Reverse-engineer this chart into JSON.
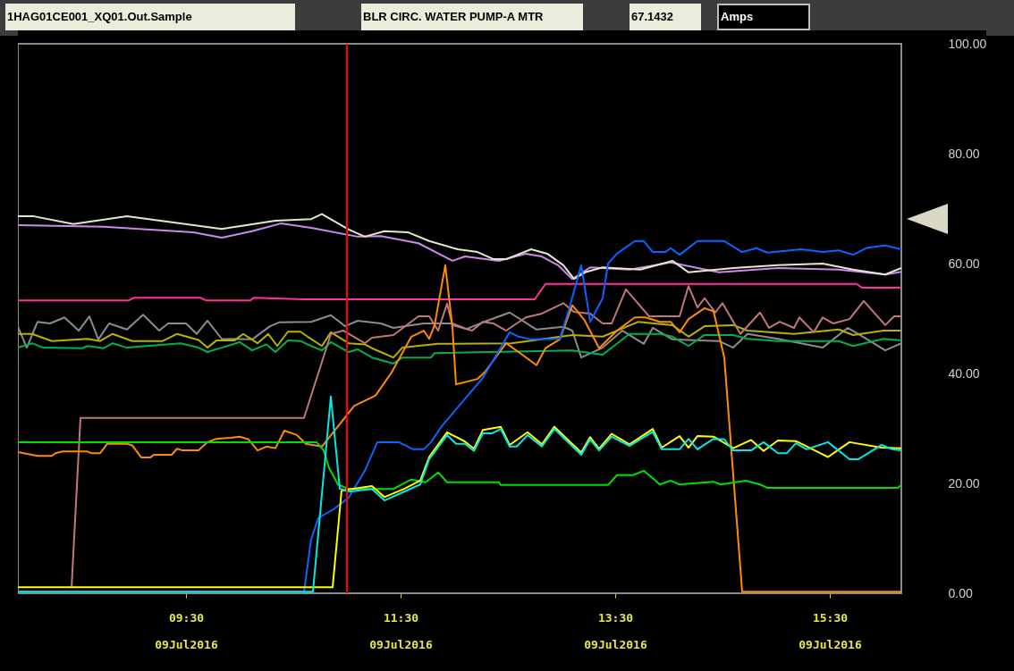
{
  "chart_data": {
    "type": "line",
    "title": "1HAG01CE001_XQ01.Out.Sample",
    "subtitle": "BLR CIRC. WATER PUMP-A MTR",
    "ylabel": "Amps",
    "annotations": [
      "67.1432"
    ],
    "xlim": [
      "2016-07-09T07:56",
      "2016-07-09T16:10"
    ],
    "ylim": [
      0,
      100
    ],
    "xticks": [
      {
        "value": "2016-07-09T09:30",
        "label": "09:30\n09Jul2016"
      },
      {
        "value": "2016-07-09T11:30",
        "label": "11:30\n09Jul2016"
      },
      {
        "value": "2016-07-09T13:30",
        "label": "13:30\n09Jul2016"
      },
      {
        "value": "2016-07-09T15:30",
        "label": "15:30\n09Jul2016"
      }
    ],
    "yticks": [
      {
        "value": 0,
        "label": "0.00"
      },
      {
        "value": 20,
        "label": "20.00"
      },
      {
        "value": 40,
        "label": "40.00"
      },
      {
        "value": 60,
        "label": "60.00"
      },
      {
        "value": 80,
        "label": "80.00"
      },
      {
        "value": 100,
        "label": "100.00"
      }
    ],
    "ref_lines": [
      {
        "axis": "x",
        "value": "2016-07-09T11:00",
        "color": "#ff0000"
      }
    ],
    "series": [
      {
        "color": "#ff3399",
        "x": [
          "2016-07-09T07:56",
          "2016-07-09T08:58",
          "2016-07-09T09:01",
          "2016-07-09T09:38",
          "2016-07-09T09:41",
          "2016-07-09T10:06",
          "2016-07-09T10:08",
          "2016-07-09T10:36",
          "2016-07-09T12:45",
          "2016-07-09T12:51",
          "2016-07-09T15:45",
          "2016-07-09T15:48",
          "2016-07-09T16:10"
        ],
        "values": [
          53.3,
          53.3,
          53.8,
          53.8,
          53.3,
          53.3,
          53.8,
          53.5,
          53.5,
          56.3,
          56.3,
          55.6,
          55.6
        ]
      },
      {
        "color": "#8c8c8c",
        "x": [
          "2016-07-09T07:56",
          "2016-07-09T08:01",
          "2016-07-09T08:07",
          "2016-07-09T08:14",
          "2016-07-09T08:22",
          "2016-07-09T08:30",
          "2016-07-09T08:36",
          "2016-07-09T08:41",
          "2016-07-09T08:47",
          "2016-07-09T08:57",
          "2016-07-09T09:06",
          "2016-07-09T09:15",
          "2016-07-09T09:20",
          "2016-07-09T09:30",
          "2016-07-09T09:36",
          "2016-07-09T09:42",
          "2016-07-09T09:50",
          "2016-07-09T10:07",
          "2016-07-09T10:17",
          "2016-07-09T10:22",
          "2016-07-09T10:40",
          "2016-07-09T10:51",
          "2016-07-09T10:59",
          "2016-07-09T11:06",
          "2016-07-09T11:19",
          "2016-07-09T11:26",
          "2016-07-09T11:43",
          "2016-07-09T11:59",
          "2016-07-09T12:07",
          "2016-07-09T12:16",
          "2016-07-09T12:31",
          "2016-07-09T12:46",
          "2016-07-09T13:01",
          "2016-07-09T13:06",
          "2016-07-09T13:11",
          "2016-07-09T13:23",
          "2016-07-09T13:34",
          "2016-07-09T13:46",
          "2016-07-09T13:51",
          "2016-07-09T14:02",
          "2016-07-09T14:28",
          "2016-07-09T14:36",
          "2016-07-09T14:44",
          "2016-07-09T15:01",
          "2016-07-09T15:26",
          "2016-07-09T15:40",
          "2016-07-09T15:51",
          "2016-07-09T16:01",
          "2016-07-09T16:10"
        ],
        "values": [
          48.5,
          44.7,
          49.4,
          49.1,
          50.2,
          47.8,
          50.4,
          46.2,
          49.1,
          48.0,
          50.7,
          47.8,
          49.1,
          49.1,
          47.2,
          49.6,
          46.3,
          46.2,
          48.6,
          49.3,
          49.4,
          50.6,
          48.6,
          49.6,
          49.1,
          48.3,
          49.1,
          49.1,
          48.1,
          49.3,
          51.1,
          48.0,
          48.5,
          47.8,
          42.9,
          44.7,
          47.8,
          45.4,
          48.3,
          46.2,
          45.9,
          44.7,
          47.2,
          46.3,
          44.7,
          48.3,
          46.2,
          44.2,
          45.5
        ]
      },
      {
        "color": "#b4b400",
        "x": [
          "2016-07-09T07:56",
          "2016-07-09T08:04",
          "2016-07-09T08:15",
          "2016-07-09T08:35",
          "2016-07-09T08:42",
          "2016-07-09T08:49",
          "2016-07-09T09:00",
          "2016-07-09T09:17",
          "2016-07-09T09:25",
          "2016-07-09T09:37",
          "2016-07-09T09:42",
          "2016-07-09T09:47",
          "2016-07-09T09:57",
          "2016-07-09T10:02",
          "2016-07-09T10:10",
          "2016-07-09T10:16",
          "2016-07-09T10:21",
          "2016-07-09T10:27",
          "2016-07-09T10:34",
          "2016-07-09T10:38",
          "2016-07-09T10:46",
          "2016-07-09T10:51",
          "2016-07-09T11:01",
          "2016-07-09T11:10",
          "2016-07-09T11:14",
          "2016-07-09T11:26",
          "2016-07-09T11:31",
          "2016-07-09T11:51",
          "2016-07-09T12:32",
          "2016-07-09T13:06",
          "2016-07-09T13:23",
          "2016-07-09T13:43",
          "2016-07-09T14:02",
          "2016-07-09T14:11",
          "2016-07-09T14:20",
          "2016-07-09T14:36",
          "2016-07-09T14:44",
          "2016-07-09T15:10",
          "2016-07-09T15:35",
          "2016-07-09T15:43",
          "2016-07-09T16:00",
          "2016-07-09T16:10"
        ],
        "values": [
          47.2,
          47.2,
          45.9,
          46.3,
          45.9,
          47.2,
          45.9,
          45.9,
          47.2,
          46.1,
          44.7,
          46.0,
          46.0,
          47.2,
          45.5,
          47.2,
          45.0,
          47.6,
          47.6,
          46.7,
          45.0,
          47.5,
          45.5,
          45.3,
          44.6,
          42.9,
          44.7,
          45.4,
          45.5,
          47.0,
          46.7,
          49.4,
          48.8,
          46.7,
          48.6,
          48.8,
          47.8,
          47.2,
          48.0,
          47.0,
          47.8,
          47.8
        ]
      },
      {
        "color": "#00b050",
        "x": [
          "2016-07-09T07:56",
          "2016-07-09T08:04",
          "2016-07-09T08:10",
          "2016-07-09T08:32",
          "2016-07-09T08:35",
          "2016-07-09T08:44",
          "2016-07-09T08:49",
          "2016-07-09T08:57",
          "2016-07-09T09:27",
          "2016-07-09T09:37",
          "2016-07-09T09:42",
          "2016-07-09T09:50",
          "2016-07-09T10:00",
          "2016-07-09T10:07",
          "2016-07-09T10:15",
          "2016-07-09T10:20",
          "2016-07-09T10:27",
          "2016-07-09T10:34",
          "2016-07-09T10:40",
          "2016-07-09T10:46",
          "2016-07-09T10:51",
          "2016-07-09T11:01",
          "2016-07-09T11:06",
          "2016-07-09T11:14",
          "2016-07-09T11:26",
          "2016-07-09T11:31",
          "2016-07-09T11:47",
          "2016-07-09T11:49",
          "2016-07-09T13:06",
          "2016-07-09T13:23",
          "2016-07-09T13:26",
          "2016-07-09T13:38",
          "2016-07-09T13:55",
          "2016-07-09T14:02",
          "2016-07-09T14:11",
          "2016-07-09T14:20",
          "2016-07-09T14:36",
          "2016-07-09T14:44",
          "2016-07-09T15:01",
          "2016-07-09T15:35",
          "2016-07-09T15:43",
          "2016-07-09T16:00",
          "2016-07-09T16:10"
        ],
        "values": [
          44.7,
          45.5,
          44.7,
          44.6,
          45.0,
          44.6,
          45.5,
          44.7,
          45.5,
          44.7,
          43.9,
          44.7,
          45.7,
          44.2,
          45.3,
          43.9,
          46.0,
          45.9,
          45.0,
          44.2,
          45.7,
          43.9,
          44.4,
          42.9,
          41.8,
          42.9,
          42.9,
          43.7,
          44.2,
          43.4,
          44.2,
          47.2,
          47.2,
          46.7,
          45.0,
          47.0,
          47.0,
          46.3,
          45.9,
          45.9,
          45.0,
          46.3,
          46.0
        ]
      },
      {
        "color": "#c07878",
        "x": [
          "2016-07-09T08:26",
          "2016-07-09T08:31",
          "2016-07-09T10:36",
          "2016-07-09T10:51",
          "2016-07-09T10:58",
          "2016-07-09T11:10",
          "2016-07-09T11:14",
          "2016-07-09T11:26",
          "2016-07-09T11:40",
          "2016-07-09T11:46",
          "2016-07-09T11:51",
          "2016-07-09T11:56",
          "2016-07-09T11:59",
          "2016-07-09T12:10",
          "2016-07-09T12:16",
          "2016-07-09T12:22",
          "2016-07-09T12:29",
          "2016-07-09T12:40",
          "2016-07-09T12:49",
          "2016-07-09T13:01",
          "2016-07-09T13:07",
          "2016-07-09T13:16",
          "2016-07-09T13:23",
          "2016-07-09T13:28",
          "2016-07-09T13:36",
          "2016-07-09T13:49",
          "2016-07-09T14:06",
          "2016-07-09T14:11",
          "2016-07-09T14:16",
          "2016-07-09T14:20",
          "2016-07-09T14:26",
          "2016-07-09T14:30",
          "2016-07-09T14:40",
          "2016-07-09T14:51",
          "2016-07-09T14:56",
          "2016-07-09T15:02",
          "2016-07-09T15:10",
          "2016-07-09T15:13",
          "2016-07-09T15:21",
          "2016-07-09T15:26",
          "2016-07-09T15:32",
          "2016-07-09T15:41",
          "2016-07-09T15:49",
          "2016-07-09T16:01",
          "2016-07-09T16:06",
          "2016-07-09T16:10"
        ],
        "values": [
          1.0,
          31.9,
          31.9,
          47.2,
          47.8,
          45.5,
          46.5,
          47.0,
          50.4,
          50.4,
          47.8,
          52.7,
          48.8,
          47.8,
          49.4,
          49.1,
          47.8,
          50.2,
          50.9,
          52.8,
          51.2,
          50.9,
          49.1,
          49.1,
          55.3,
          50.4,
          50.4,
          55.9,
          52.0,
          53.7,
          51.1,
          52.8,
          47.2,
          51.1,
          48.3,
          49.4,
          48.3,
          50.2,
          47.5,
          50.2,
          49.1,
          49.9,
          53.2,
          48.8,
          50.4,
          50.4
        ]
      },
      {
        "color": "#cc88ee",
        "x": [
          "2016-07-09T07:56",
          "2016-07-09T08:44",
          "2016-07-09T09:34",
          "2016-07-09T09:50",
          "2016-07-09T10:07",
          "2016-07-09T10:23",
          "2016-07-09T10:40",
          "2016-07-09T11:06",
          "2016-07-09T11:19",
          "2016-07-09T11:40",
          "2016-07-09T11:59",
          "2016-07-09T12:06",
          "2016-07-09T12:25",
          "2016-07-09T12:40",
          "2016-07-09T12:49",
          "2016-07-09T12:58",
          "2016-07-09T13:06",
          "2016-07-09T13:16",
          "2016-07-09T13:38",
          "2016-07-09T14:01",
          "2016-07-09T14:28",
          "2016-07-09T15:01",
          "2016-07-09T15:35",
          "2016-07-09T16:01",
          "2016-07-09T16:10"
        ],
        "values": [
          67.0,
          66.7,
          65.7,
          64.7,
          65.9,
          67.3,
          66.5,
          64.9,
          65.0,
          63.7,
          60.5,
          61.3,
          60.5,
          61.8,
          61.3,
          59.7,
          57.2,
          59.3,
          58.9,
          60.2,
          58.4,
          59.2,
          58.9,
          58.0,
          58.5
        ]
      },
      {
        "color": "#e6e6cc",
        "x": [
          "2016-07-09T07:56",
          "2016-07-09T08:05",
          "2016-07-09T08:27",
          "2016-07-09T08:57",
          "2016-07-09T09:50",
          "2016-07-09T10:20",
          "2016-07-09T10:40",
          "2016-07-09T10:46",
          "2016-07-09T11:01",
          "2016-07-09T11:10",
          "2016-07-09T11:21",
          "2016-07-09T11:34",
          "2016-07-09T11:46",
          "2016-07-09T12:02",
          "2016-07-09T12:13",
          "2016-07-09T12:22",
          "2016-07-09T12:29",
          "2016-07-09T12:43",
          "2016-07-09T12:52",
          "2016-07-09T13:01",
          "2016-07-09T13:07",
          "2016-07-09T13:14",
          "2016-07-09T13:23",
          "2016-07-09T13:44",
          "2016-07-09T14:02",
          "2016-07-09T14:11",
          "2016-07-09T14:36",
          "2016-07-09T15:01",
          "2016-07-09T15:26",
          "2016-07-09T15:43",
          "2016-07-09T16:01",
          "2016-07-09T16:10"
        ],
        "values": [
          68.6,
          68.6,
          67.2,
          68.6,
          66.3,
          67.8,
          68.1,
          69.0,
          66.2,
          64.9,
          65.9,
          65.7,
          64.1,
          62.6,
          62.1,
          60.8,
          60.8,
          62.6,
          61.8,
          59.7,
          57.2,
          58.5,
          59.3,
          58.9,
          60.5,
          58.4,
          59.2,
          59.7,
          60.0,
          58.9,
          58.0,
          59.2
        ]
      },
      {
        "color": "#ff8c00",
        "x": [
          "2016-07-09T07:56",
          "2016-07-09T08:07",
          "2016-07-09T08:15",
          "2016-07-09T08:17",
          "2016-07-09T08:21",
          "2016-07-09T08:35",
          "2016-07-09T08:37",
          "2016-07-09T08:42",
          "2016-07-09T08:46",
          "2016-07-09T08:57",
          "2016-07-09T09:00",
          "2016-07-09T09:05",
          "2016-07-09T09:10",
          "2016-07-09T09:12",
          "2016-07-09T09:22",
          "2016-07-09T09:25",
          "2016-07-09T09:28",
          "2016-07-09T09:37",
          "2016-07-09T09:42",
          "2016-07-09T09:47",
          "2016-07-09T09:55",
          "2016-07-09T10:00",
          "2016-07-09T10:05",
          "2016-07-09T10:10",
          "2016-07-09T10:15",
          "2016-07-09T10:20",
          "2016-07-09T10:25",
          "2016-07-09T10:32",
          "2016-07-09T10:37",
          "2016-07-09T10:46",
          "2016-07-09T10:55",
          "2016-07-09T11:04",
          "2016-07-09T11:16",
          "2016-07-09T11:25",
          "2016-07-09T11:36",
          "2016-07-09T11:43",
          "2016-07-09T11:46",
          "2016-07-09T11:49",
          "2016-07-09T11:55",
          "2016-07-09T11:59",
          "2016-07-09T12:01",
          "2016-07-09T12:13",
          "2016-07-09T12:17",
          "2016-07-09T12:29",
          "2016-07-09T12:36",
          "2016-07-09T12:46",
          "2016-07-09T12:51",
          "2016-07-09T12:59",
          "2016-07-09T13:06",
          "2016-07-09T13:13",
          "2016-07-09T13:21",
          "2016-07-09T13:31",
          "2016-07-09T13:41",
          "2016-07-09T13:47",
          "2016-07-09T13:55",
          "2016-07-09T14:01",
          "2016-07-09T14:06",
          "2016-07-09T14:11",
          "2016-07-09T14:20",
          "2016-07-09T14:25",
          "2016-07-09T14:31",
          "2016-07-09T14:41",
          "2016-07-09T16:10"
        ],
        "values": [
          25.7,
          25.0,
          25.0,
          25.5,
          25.8,
          25.8,
          25.5,
          25.5,
          27.2,
          27.2,
          26.9,
          24.7,
          24.7,
          25.2,
          25.2,
          26.3,
          26.0,
          26.0,
          27.5,
          28.1,
          28.3,
          28.5,
          28.0,
          26.0,
          26.7,
          26.4,
          29.6,
          28.8,
          27.2,
          26.7,
          30.4,
          34.1,
          36.0,
          40.2,
          46.7,
          47.8,
          46.3,
          48.8,
          59.7,
          48.3,
          38.0,
          39.0,
          40.2,
          45.5,
          43.9,
          41.5,
          44.6,
          46.2,
          52.4,
          49.6,
          44.6,
          47.8,
          50.2,
          50.2,
          49.4,
          49.4,
          47.5,
          49.9,
          51.9,
          51.3,
          42.9,
          0.3,
          0.3
        ]
      },
      {
        "color": "#00dd00",
        "x": [
          "2016-07-09T07:56",
          "2016-07-09T10:43",
          "2016-07-09T10:47",
          "2016-07-09T10:50",
          "2016-07-09T10:55",
          "2016-07-09T11:01",
          "2016-07-09T11:26",
          "2016-07-09T11:36",
          "2016-07-09T11:44",
          "2016-07-09T11:51",
          "2016-07-09T11:56",
          "2016-07-09T12:25",
          "2016-07-09T12:26",
          "2016-07-09T13:26",
          "2016-07-09T13:31",
          "2016-07-09T13:40",
          "2016-07-09T13:46",
          "2016-07-09T13:55",
          "2016-07-09T14:01",
          "2016-07-09T14:06",
          "2016-07-09T14:25",
          "2016-07-09T14:29",
          "2016-07-09T14:43",
          "2016-07-09T14:51",
          "2016-07-09T14:55",
          "2016-07-09T16:08",
          "2016-07-09T16:10"
        ],
        "values": [
          27.5,
          27.5,
          26.0,
          22.8,
          19.8,
          19.0,
          19.0,
          20.7,
          20.2,
          22.0,
          20.2,
          20.2,
          19.7,
          19.7,
          21.5,
          21.5,
          22.3,
          19.8,
          20.5,
          19.8,
          20.3,
          19.8,
          20.5,
          19.8,
          19.2,
          19.2,
          19.7
        ]
      },
      {
        "color": "#0a64ff",
        "x": [
          "2016-07-09T07:56",
          "2016-07-09T10:36",
          "2016-07-09T10:40",
          "2016-07-09T10:44",
          "2016-07-09T10:53",
          "2016-07-09T11:01",
          "2016-07-09T11:10",
          "2016-07-09T11:17",
          "2016-07-09T11:29",
          "2016-07-09T11:37",
          "2016-07-09T11:43",
          "2016-07-09T11:47",
          "2016-07-09T11:53",
          "2016-07-09T12:16",
          "2016-07-09T12:31",
          "2016-07-09T12:36",
          "2016-07-09T12:43",
          "2016-07-09T12:59",
          "2016-07-09T13:04",
          "2016-07-09T13:11",
          "2016-07-09T13:16",
          "2016-07-09T13:23",
          "2016-07-09T13:26",
          "2016-07-09T13:31",
          "2016-07-09T13:41",
          "2016-07-09T13:46",
          "2016-07-09T13:51",
          "2016-07-09T13:58",
          "2016-07-09T14:01",
          "2016-07-09T14:06",
          "2016-07-09T14:16",
          "2016-07-09T14:31",
          "2016-07-09T14:41",
          "2016-07-09T14:49",
          "2016-07-09T14:55",
          "2016-07-09T15:14",
          "2016-07-09T15:26",
          "2016-07-09T15:35",
          "2016-07-09T15:43",
          "2016-07-09T15:51",
          "2016-07-09T16:01",
          "2016-07-09T16:10"
        ],
        "values": [
          0.3,
          0.3,
          9.8,
          13.7,
          15.4,
          17.4,
          22.3,
          27.5,
          27.5,
          26.2,
          26.2,
          27.5,
          30.4,
          39.2,
          47.5,
          46.7,
          46.2,
          46.3,
          51.5,
          59.7,
          49.4,
          53.7,
          60.0,
          61.8,
          64.1,
          64.1,
          62.1,
          62.1,
          62.8,
          61.6,
          64.1,
          64.1,
          62.1,
          62.8,
          62.0,
          62.6,
          62.1,
          62.4,
          61.6,
          62.9,
          63.3,
          62.6
        ]
      },
      {
        "color": "#ffff00",
        "x": [
          "2016-07-09T07:56",
          "2016-07-09T10:52",
          "2016-07-09T10:57",
          "2016-07-09T11:14",
          "2016-07-09T11:21",
          "2016-07-09T11:32",
          "2016-07-09T11:41",
          "2016-07-09T11:46",
          "2016-07-09T11:56",
          "2016-07-09T12:06",
          "2016-07-09T12:11",
          "2016-07-09T12:16",
          "2016-07-09T12:26",
          "2016-07-09T12:31",
          "2016-07-09T12:41",
          "2016-07-09T12:49",
          "2016-07-09T12:56",
          "2016-07-09T13:11",
          "2016-07-09T13:16",
          "2016-07-09T13:21",
          "2016-07-09T13:28",
          "2016-07-09T13:38",
          "2016-07-09T13:51",
          "2016-07-09T13:56",
          "2016-07-09T14:06",
          "2016-07-09T14:11",
          "2016-07-09T14:16",
          "2016-07-09T14:25",
          "2016-07-09T14:36",
          "2016-07-09T14:46",
          "2016-07-09T14:53",
          "2016-07-09T15:01",
          "2016-07-09T15:11",
          "2016-07-09T15:29",
          "2016-07-09T15:41",
          "2016-07-09T15:59",
          "2016-07-09T16:10"
        ],
        "values": [
          1.1,
          1.1,
          18.7,
          19.5,
          17.5,
          19.0,
          20.5,
          24.8,
          29.3,
          27.6,
          26.3,
          29.7,
          30.3,
          27.0,
          29.3,
          27.1,
          30.3,
          25.6,
          28.4,
          26.3,
          29.0,
          27.1,
          29.9,
          26.5,
          28.6,
          26.5,
          28.6,
          28.5,
          26.4,
          27.9,
          25.9,
          27.8,
          27.7,
          24.8,
          27.5,
          26.5,
          26.4
        ]
      },
      {
        "color": "#00e8e8",
        "x": [
          "2016-07-09T07:56",
          "2016-07-09T10:41",
          "2016-07-09T10:51",
          "2016-07-09T10:56",
          "2016-07-09T11:01",
          "2016-07-09T11:14",
          "2016-07-09T11:21",
          "2016-07-09T11:32",
          "2016-07-09T11:41",
          "2016-07-09T11:46",
          "2016-07-09T11:56",
          "2016-07-09T12:01",
          "2016-07-09T12:06",
          "2016-07-09T12:11",
          "2016-07-09T12:16",
          "2016-07-09T12:21",
          "2016-07-09T12:26",
          "2016-07-09T12:31",
          "2016-07-09T12:35",
          "2016-07-09T12:41",
          "2016-07-09T12:49",
          "2016-07-09T12:56",
          "2016-07-09T13:11",
          "2016-07-09T13:16",
          "2016-07-09T13:21",
          "2016-07-09T13:28",
          "2016-07-09T13:38",
          "2016-07-09T13:51",
          "2016-07-09T13:56",
          "2016-07-09T14:06",
          "2016-07-09T14:11",
          "2016-07-09T14:16",
          "2016-07-09T14:25",
          "2016-07-09T14:31",
          "2016-07-09T14:36",
          "2016-07-09T14:46",
          "2016-07-09T14:53",
          "2016-07-09T15:01",
          "2016-07-09T15:06",
          "2016-07-09T15:11",
          "2016-07-09T15:17",
          "2016-07-09T15:29",
          "2016-07-09T15:41",
          "2016-07-09T15:46",
          "2016-07-09T15:59",
          "2016-07-09T16:05",
          "2016-07-09T16:10"
        ],
        "values": [
          0.3,
          0.3,
          35.8,
          19.0,
          18.5,
          19.0,
          16.9,
          18.5,
          19.8,
          24.4,
          28.8,
          27.2,
          27.2,
          25.9,
          29.1,
          29.1,
          29.9,
          26.7,
          26.7,
          28.8,
          26.7,
          29.9,
          25.2,
          28.0,
          26.0,
          28.5,
          26.8,
          29.4,
          26.2,
          26.2,
          28.1,
          26.2,
          28.1,
          28.0,
          26.0,
          26.0,
          27.5,
          25.5,
          25.5,
          27.3,
          26.2,
          27.5,
          24.4,
          24.4,
          27.0,
          26.2,
          26.0
        ]
      }
    ]
  }
}
